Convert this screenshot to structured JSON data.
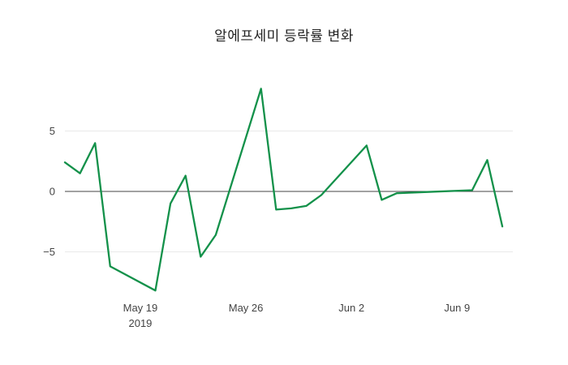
{
  "chart_data": {
    "type": "line",
    "title": "알에프세미 등락률 변화",
    "xlabel": "",
    "ylabel": "",
    "ylim": [
      -9.15,
      9.15
    ],
    "grid": "horizontal-light-gridlines",
    "legend": "none",
    "line_color": "#13914a",
    "zero_line_color": "#444444",
    "grid_color": "#e9e9e9",
    "tick_label_color": "#444444",
    "background_color": "#ffffff",
    "series": [
      {
        "name": "알에프세미 등락률",
        "x": [
          "2019-05-14",
          "2019-05-15",
          "2019-05-16",
          "2019-05-17",
          "2019-05-20",
          "2019-05-21",
          "2019-05-22",
          "2019-05-23",
          "2019-05-24",
          "2019-05-27",
          "2019-05-28",
          "2019-05-29",
          "2019-05-30",
          "2019-05-31",
          "2019-06-03",
          "2019-06-04",
          "2019-06-05",
          "2019-06-06",
          "2019-06-07",
          "2019-06-10",
          "2019-06-11",
          "2019-06-12"
        ],
        "values": [
          2.4,
          1.5,
          4.0,
          -6.2,
          -8.2,
          -1.0,
          1.3,
          -5.4,
          -3.6,
          8.5,
          -1.5,
          -1.4,
          -1.2,
          -0.3,
          3.8,
          -0.7,
          -0.15,
          -0.1,
          -0.05,
          0.1,
          2.6,
          -2.9
        ]
      }
    ],
    "x_ticks": [
      {
        "date": "2019-05-19",
        "label": "May 19",
        "sub": "2019"
      },
      {
        "date": "2019-05-26",
        "label": "May 26",
        "sub": ""
      },
      {
        "date": "2019-06-02",
        "label": "Jun 2",
        "sub": ""
      },
      {
        "date": "2019-06-09",
        "label": "Jun 9",
        "sub": ""
      }
    ],
    "y_ticks": [
      {
        "value": 5,
        "label": "5"
      },
      {
        "value": 0,
        "label": "0"
      },
      {
        "value": -5,
        "label": "−5"
      }
    ]
  }
}
